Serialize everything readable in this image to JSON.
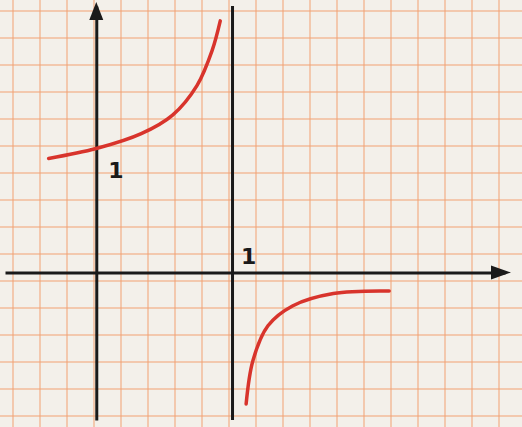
{
  "chart_data": {
    "type": "line",
    "series": [
      {
        "color": "#d8342c",
        "x": [
          -0.35,
          0,
          0.33,
          0.56,
          0.74,
          0.85,
          0.91
        ],
        "values": [
          0.92,
          1.0,
          1.12,
          1.27,
          1.51,
          1.79,
          2.03
        ]
      },
      {
        "color": "#d8342c",
        "x": [
          1.1,
          1.15,
          1.26,
          1.44,
          1.74,
          2.15
        ],
        "values": [
          -1.06,
          -0.71,
          -0.43,
          -0.27,
          -0.17,
          -0.15
        ]
      }
    ],
    "asymptote": {
      "x": 1
    },
    "xlim": [
      -0.67,
      3.0
    ],
    "ylim": [
      -1.19,
      2.15
    ],
    "xticks": [
      1
    ],
    "yticks": [
      1
    ]
  }
}
